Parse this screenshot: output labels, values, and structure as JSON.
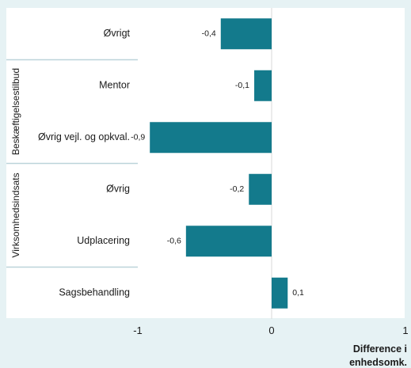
{
  "title": "",
  "chart_data": {
    "type": "bar",
    "orientation": "horizontal",
    "categories": [
      "Øvrigt",
      "Mentor",
      "Øvrig vejl. og opkval.",
      "Øvrig",
      "Udplacering",
      "Sagsbehandling"
    ],
    "groups": [
      {
        "name": "Beskæftigelsestilbud",
        "members": [
          "Mentor",
          "Øvrig vejl. og opkval."
        ]
      },
      {
        "name": "Virksomhedsindsats",
        "members": [
          "Øvrig",
          "Udplacering"
        ]
      }
    ],
    "values": [
      -0.4,
      -0.1,
      -0.9,
      -0.2,
      -0.6,
      0.1
    ],
    "bar_values": [
      -0.38,
      -0.13,
      -0.91,
      -0.17,
      -0.64,
      0.12
    ],
    "data_labels": [
      "-0,4",
      "-0,1",
      "-0,9",
      "-0,2",
      "-0,6",
      "0,1"
    ],
    "xlim": [
      -1,
      1
    ],
    "xticks": [
      -1,
      0,
      1
    ],
    "xtick_labels": [
      "-1",
      "0",
      "1"
    ],
    "xlabel_lines": [
      "Difference i",
      "enhedsomk."
    ],
    "ylabel": "",
    "bar_color": "#137a8c",
    "grid": false,
    "legend": "none"
  },
  "colors": {
    "background": "#e6f2f4",
    "plot_background": "#ffffff",
    "bar": "#137a8c",
    "divider": "#bcd4da",
    "zero_line": "#d9d9d9"
  }
}
